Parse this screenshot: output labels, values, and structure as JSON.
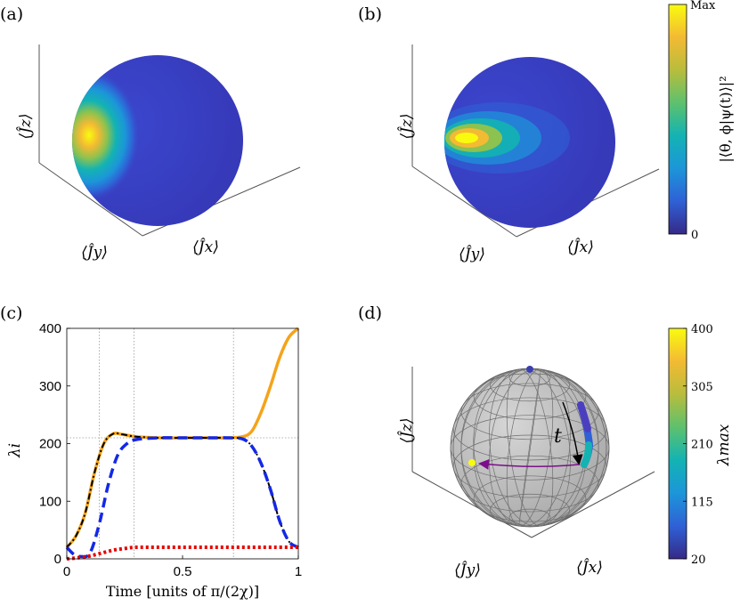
{
  "panels": {
    "a": {
      "label": "(a)",
      "x_axis": "⟨Ĵx⟩",
      "y_axis": "⟨Ĵy⟩",
      "z_axis": "⟨Ĵz⟩"
    },
    "b": {
      "label": "(b)",
      "x_axis": "⟨Ĵx⟩",
      "y_axis": "⟨Ĵy⟩",
      "z_axis": "⟨Ĵz⟩"
    },
    "c": {
      "label": "(c)"
    },
    "d": {
      "label": "(d)",
      "x_axis": "⟨Ĵx⟩",
      "y_axis": "⟨Ĵy⟩",
      "z_axis": "⟨Ĵz⟩",
      "arrow_label": "t"
    }
  },
  "colorbar_top": {
    "label": "|⟨θ, ϕ|ψ(t)⟩|²",
    "max_label": "Max",
    "min_label": "0",
    "colors": [
      "#352a87",
      "#2f61d6",
      "#1c96d9",
      "#13b3b3",
      "#5dc16e",
      "#b8bd3c",
      "#f3ba33",
      "#f9fb0e"
    ]
  },
  "colorbar_bottom": {
    "label": "λmax",
    "ticks": [
      "20",
      "115",
      "210",
      "305",
      "400"
    ],
    "colors": [
      "#352a87",
      "#2f61d6",
      "#1c96d9",
      "#13b3b3",
      "#5dc16e",
      "#b8bd3c",
      "#f3ba33",
      "#f9fb0e"
    ]
  },
  "chart_data": {
    "type": "line",
    "xlabel": "Time [units of π/(2χ)]",
    "ylabel": "λi",
    "xlim": [
      0,
      1
    ],
    "ylim": [
      0,
      400
    ],
    "x_ticks": [
      "0",
      "0.5",
      "1"
    ],
    "y_ticks": [
      "0",
      "100",
      "200",
      "300",
      "400"
    ],
    "vlines": [
      0.14,
      0.29,
      0.72
    ],
    "hline": 210,
    "series": [
      {
        "style": "solid-orange",
        "color": "#f5a31a",
        "x": [
          0,
          0.04,
          0.08,
          0.12,
          0.16,
          0.2,
          0.24,
          0.3,
          0.4,
          0.5,
          0.6,
          0.7,
          0.76,
          0.8,
          0.84,
          0.88,
          0.92,
          0.96,
          1.0
        ],
        "y": [
          20,
          40,
          80,
          150,
          200,
          217,
          216,
          212,
          210,
          210,
          210,
          210,
          212,
          222,
          255,
          300,
          350,
          385,
          400
        ]
      },
      {
        "style": "dash-dot-black",
        "color": "#000000",
        "x": [
          0,
          0.04,
          0.08,
          0.12,
          0.16,
          0.2,
          0.24,
          0.3,
          0.4,
          0.5,
          0.6,
          0.7,
          0.76,
          0.8,
          0.84,
          0.88,
          0.92,
          0.96,
          1.0
        ],
        "y": [
          20,
          40,
          80,
          150,
          200,
          217,
          216,
          212,
          210,
          210,
          210,
          210,
          208,
          195,
          165,
          120,
          65,
          30,
          20
        ]
      },
      {
        "style": "dashed-blue",
        "color": "#1428e6",
        "x": [
          0,
          0.03,
          0.06,
          0.1,
          0.14,
          0.18,
          0.22,
          0.26,
          0.3,
          0.4,
          0.5,
          0.6,
          0.7,
          0.76,
          0.8,
          0.84,
          0.88,
          0.92,
          0.96,
          1.0
        ],
        "y": [
          20,
          8,
          4,
          10,
          60,
          130,
          180,
          200,
          207,
          210,
          210,
          210,
          210,
          208,
          195,
          165,
          120,
          65,
          30,
          20
        ]
      },
      {
        "style": "dotted-red",
        "color": "#e60000",
        "x": [
          0,
          0.05,
          0.1,
          0.15,
          0.2,
          0.25,
          0.3,
          0.4,
          0.5,
          0.6,
          0.7,
          0.8,
          0.9,
          1.0
        ],
        "y": [
          0,
          2,
          5,
          10,
          15,
          18,
          20,
          20,
          20,
          20,
          20,
          20,
          20,
          20
        ]
      }
    ]
  }
}
